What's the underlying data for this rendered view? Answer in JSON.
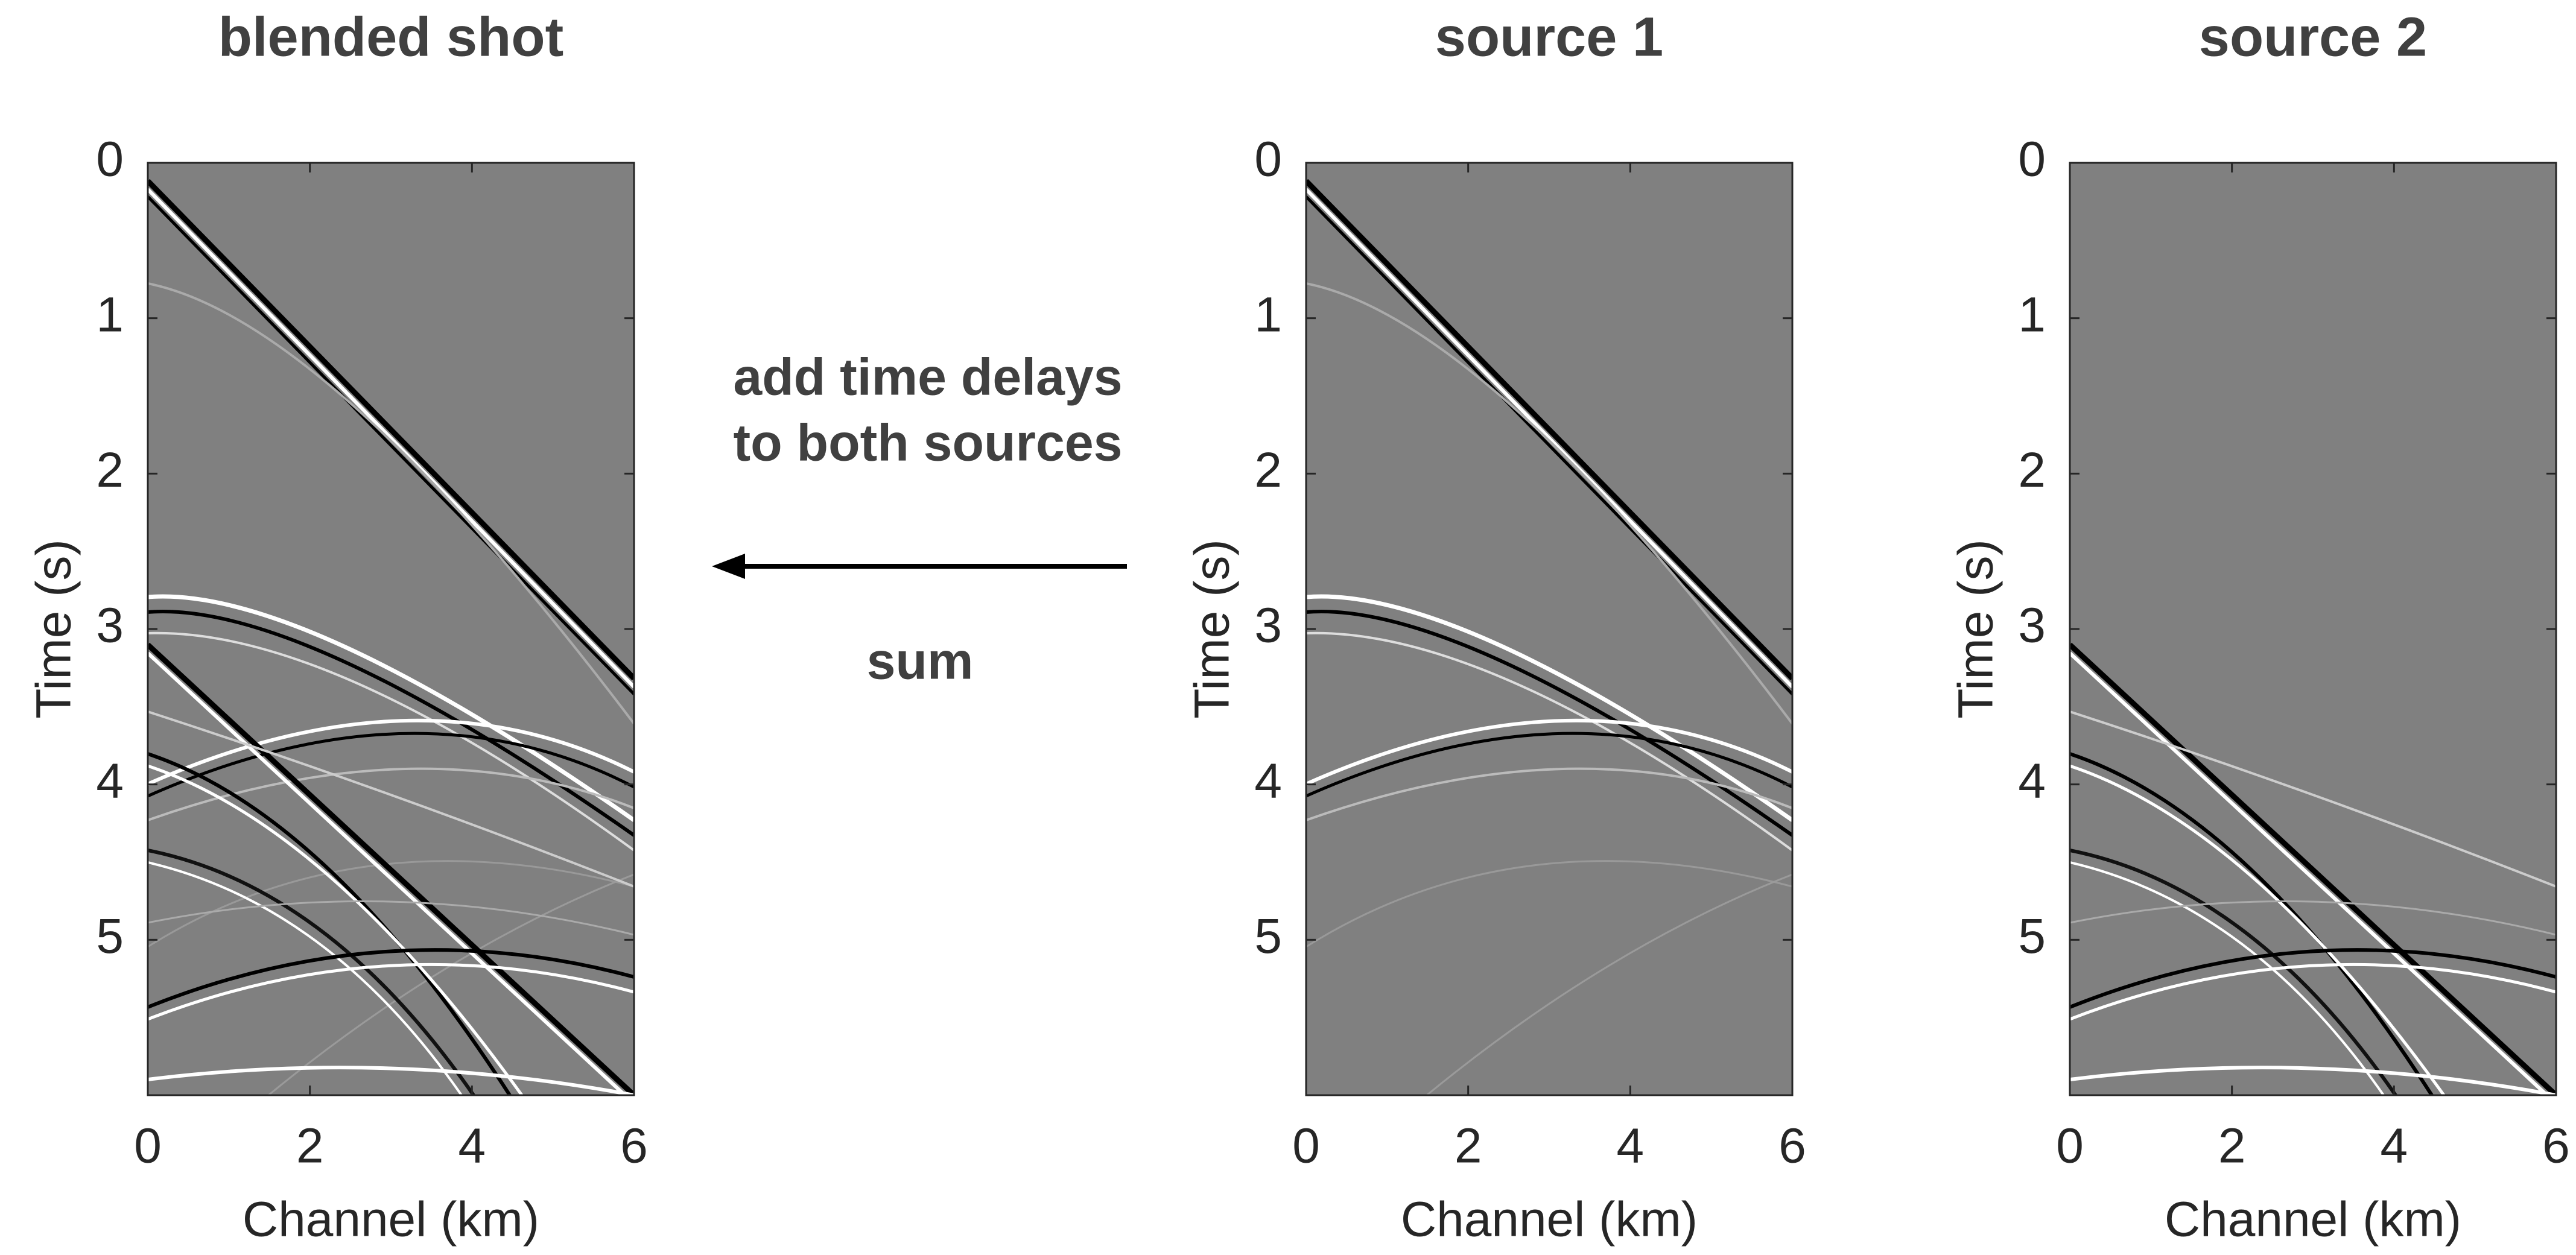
{
  "chart_data": [
    {
      "type": "image",
      "title": "blended shot",
      "xlabel": "Channel (km)",
      "ylabel": "Time (s)",
      "xlim": [
        0,
        6
      ],
      "ylim": [
        0,
        6
      ],
      "yreverse": true,
      "xticks": [
        0,
        2,
        4,
        6
      ],
      "yticks": [
        0,
        1,
        2,
        3,
        4,
        5
      ],
      "colormap": "gray"
    },
    {
      "type": "image",
      "title": "source 1",
      "xlabel": "Channel (km)",
      "ylabel": "Time (s)",
      "xlim": [
        0,
        6
      ],
      "ylim": [
        0,
        6
      ],
      "yreverse": true,
      "xticks": [
        0,
        2,
        4,
        6
      ],
      "yticks": [
        0,
        1,
        2,
        3,
        4,
        5
      ],
      "colormap": "gray"
    },
    {
      "type": "image",
      "title": "source 2",
      "xlabel": "Channel (km)",
      "ylabel": "Time (s)",
      "xlim": [
        0,
        6
      ],
      "ylim": [
        0,
        6
      ],
      "yreverse": true,
      "xticks": [
        0,
        2,
        4,
        6
      ],
      "yticks": [
        0,
        1,
        2,
        3,
        4,
        5
      ],
      "colormap": "gray"
    }
  ],
  "annotations": [
    "add time delays",
    "to both sources",
    "sum"
  ]
}
